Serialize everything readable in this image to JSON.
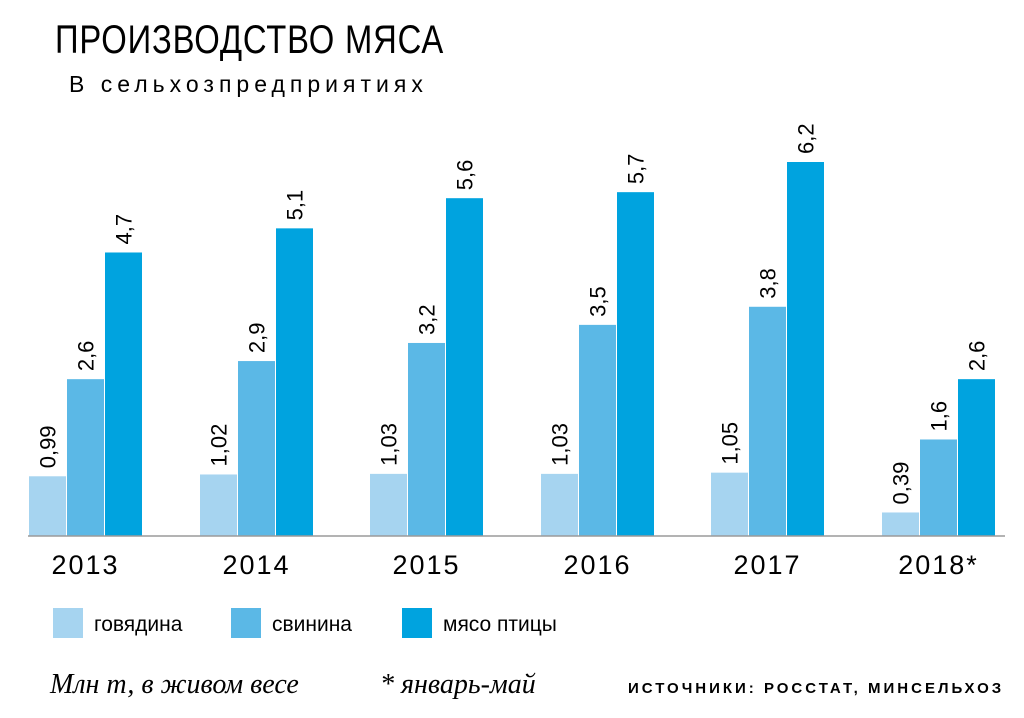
{
  "chart_data": {
    "type": "bar",
    "title": "ПРОИЗВОДСТВО МЯСА",
    "subtitle": "В сельхозпредприятиях",
    "categories": [
      "2013",
      "2014",
      "2015",
      "2016",
      "2017",
      "2018*"
    ],
    "series": [
      {
        "name": "говядина",
        "color": "#a6d4f0",
        "values": [
          0.99,
          1.02,
          1.03,
          1.03,
          1.05,
          0.39
        ],
        "labels": [
          "0,99",
          "1,02",
          "1,03",
          "1,03",
          "1,05",
          "0,39"
        ]
      },
      {
        "name": "свинина",
        "color": "#5bb8e6",
        "values": [
          2.6,
          2.9,
          3.2,
          3.5,
          3.8,
          1.6
        ],
        "labels": [
          "2,6",
          "2,9",
          "3,2",
          "3,5",
          "3,8",
          "1,6"
        ]
      },
      {
        "name": "мясо птицы",
        "color": "#00a3df",
        "values": [
          4.7,
          5.1,
          5.6,
          5.7,
          6.2,
          2.6
        ],
        "labels": [
          "4,7",
          "5,1",
          "5,6",
          "5,7",
          "6,2",
          "2,6"
        ]
      }
    ],
    "ylim": [
      0,
      6.2
    ],
    "grid": false,
    "legend": "bottom-left",
    "unit_note": "Млн т, в живом весе",
    "footnote": "* январь-май",
    "sources": "ИСТОЧНИКИ: РОССТАТ, МИНСЕЛЬХОЗ"
  }
}
